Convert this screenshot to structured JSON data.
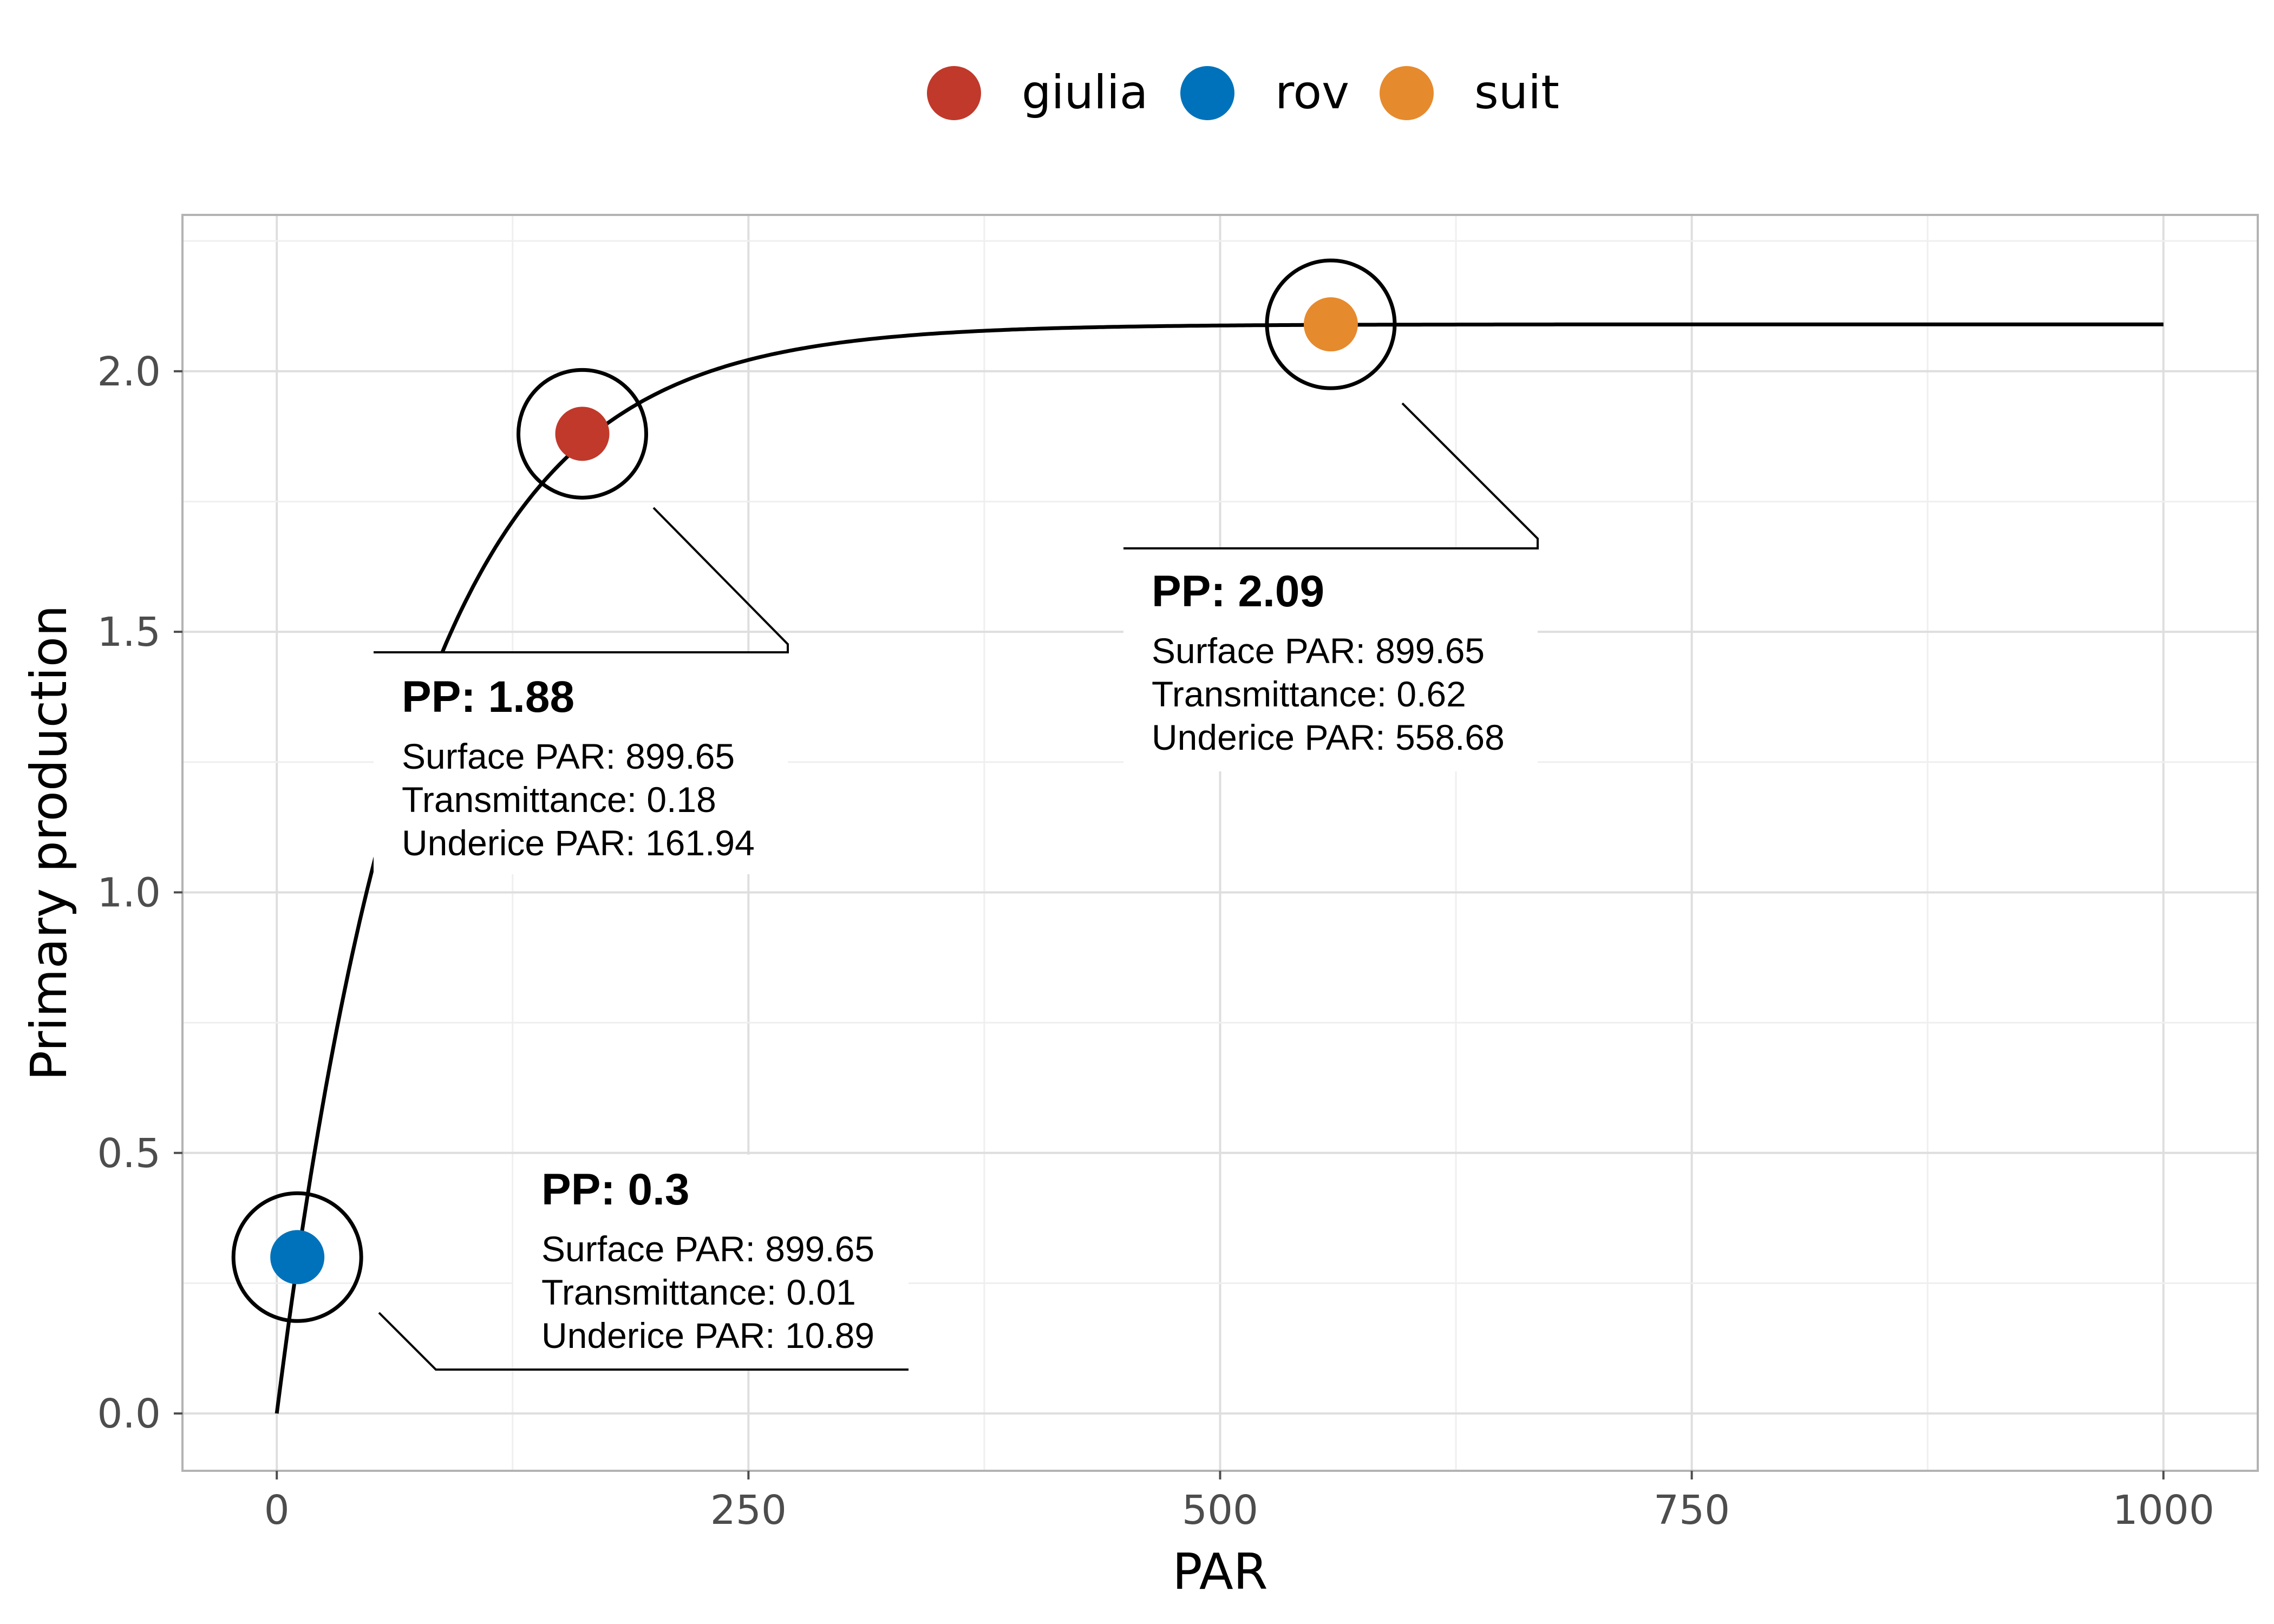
{
  "chart_data": {
    "type": "line",
    "title": "",
    "xlabel": "PAR",
    "ylabel": "Primary production",
    "xlim": [
      -50,
      1050
    ],
    "ylim": [
      -0.11,
      2.3
    ],
    "x_ticks": [
      0,
      250,
      500,
      750,
      1000
    ],
    "x_tick_labels": [
      "0",
      "250",
      "500",
      "750",
      "1000"
    ],
    "y_ticks": [
      0.0,
      0.5,
      1.0,
      1.5,
      2.0
    ],
    "y_tick_labels": [
      "0.0",
      "0.5",
      "1.0",
      "1.5",
      "2.0"
    ],
    "grid": true,
    "legend_position": "top",
    "curve": {
      "color": "#000000",
      "x": [
        0,
        5,
        10,
        15,
        20,
        30,
        40,
        50,
        60,
        70,
        80,
        90,
        100,
        115,
        130,
        145,
        161.94,
        180,
        200,
        225,
        250,
        275,
        300,
        350,
        400,
        450,
        500,
        558.68,
        600,
        700,
        800,
        900,
        1000
      ],
      "y": [
        0.0,
        0.139,
        0.273,
        0.401,
        0.523,
        0.751,
        0.955,
        1.139,
        1.304,
        1.45,
        1.58,
        1.694,
        1.791,
        1.898,
        1.974,
        2.024,
        1.88,
        2.0,
        2.03,
        2.055,
        2.069,
        2.077,
        2.082,
        2.087,
        2.089,
        2.09,
        2.09,
        2.09,
        2.09,
        2.09,
        2.09,
        2.09,
        2.09
      ]
    },
    "series": [
      {
        "name": "giulia",
        "color": "#C0392B",
        "x": 161.94,
        "y": 1.88
      },
      {
        "name": "rov",
        "color": "#0072BB",
        "x": 10.89,
        "y": 0.3
      },
      {
        "name": "suit",
        "color": "#E68A2E",
        "x": 558.68,
        "y": 2.09
      }
    ],
    "annotations": [
      {
        "title": "PP: 1.88",
        "lines": [
          "Surface PAR: 899.65",
          "Transmittance: 0.18",
          "Underice PAR: 161.94"
        ]
      },
      {
        "title": "PP: 2.09",
        "lines": [
          "Surface PAR: 899.65",
          "Transmittance: 0.62",
          "Underice PAR: 558.68"
        ]
      },
      {
        "title": "PP: 0.3",
        "lines": [
          "Surface PAR: 899.65",
          "Transmittance: 0.01",
          "Underice PAR: 10.89"
        ]
      }
    ]
  }
}
